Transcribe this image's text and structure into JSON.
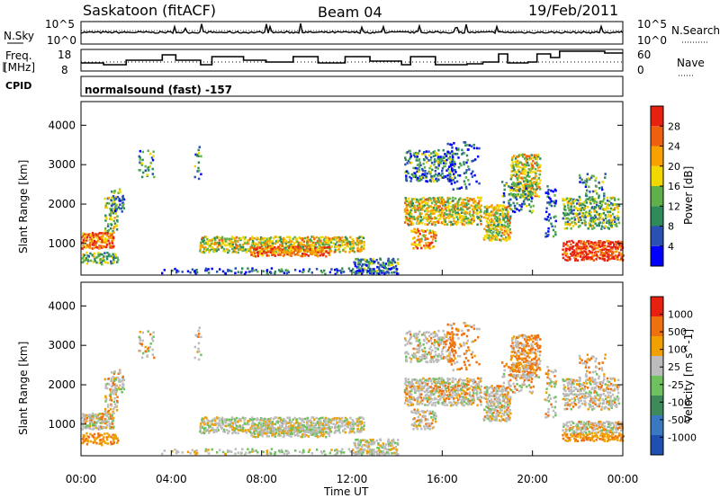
{
  "header": {
    "station": "Saskatoon (fitACF)",
    "beam": "Beam 04",
    "date": "19/Feb/2011"
  },
  "noise_panel": {
    "left_label": "N.Sky",
    "right_label": "N.Search",
    "tick_top": "10^5",
    "tick_bottom": "10^0",
    "right_tick_top": "10^5",
    "right_tick_bottom": "10^0"
  },
  "freq_panel": {
    "left_label_line1": "Freq.",
    "left_label_line2": "[MHz]",
    "right_label": "Nave",
    "left_ticks": [
      "18",
      "8"
    ],
    "right_ticks": [
      "60",
      "0"
    ]
  },
  "cpid": {
    "label": "CPID",
    "value": "normalsound (fast) -157"
  },
  "chart_data": [
    {
      "type": "heatmap",
      "name": "power",
      "ylabel": "Slant Range [km]",
      "yticks": [
        1000,
        2000,
        3000,
        4000
      ],
      "ylim": [
        200,
        4600
      ],
      "colorbar_label": "Power [dB]",
      "colorbar_ticks": [
        "28",
        "24",
        "20",
        "16",
        "12",
        "8",
        "4"
      ],
      "colors": [
        "#0000ff",
        "#2a50b4",
        "#2f8a5a",
        "#5fb04a",
        "#f0d800",
        "#f7a000",
        "#ee6010",
        "#e82010"
      ]
    },
    {
      "type": "heatmap",
      "name": "velocity",
      "ylabel": "Slant Range [km]",
      "yticks": [
        1000,
        2000,
        3000,
        4000
      ],
      "ylim": [
        200,
        4600
      ],
      "colorbar_label": "Velocity [m s^-1]",
      "colorbar_ticks": [
        "1000",
        "500",
        "100",
        "25",
        "-25",
        "-100",
        "-500",
        "-1000"
      ],
      "colors": [
        "#1f4fb0",
        "#3a78c2",
        "#3f8a5a",
        "#6fc05f",
        "#bcbcbc",
        "#f0a000",
        "#ee7010",
        "#e82010"
      ]
    }
  ],
  "xaxis": {
    "label": "Time UT",
    "ticks": [
      "00:00",
      "04:00",
      "08:00",
      "12:00",
      "16:00",
      "20:00",
      "00:00"
    ]
  }
}
